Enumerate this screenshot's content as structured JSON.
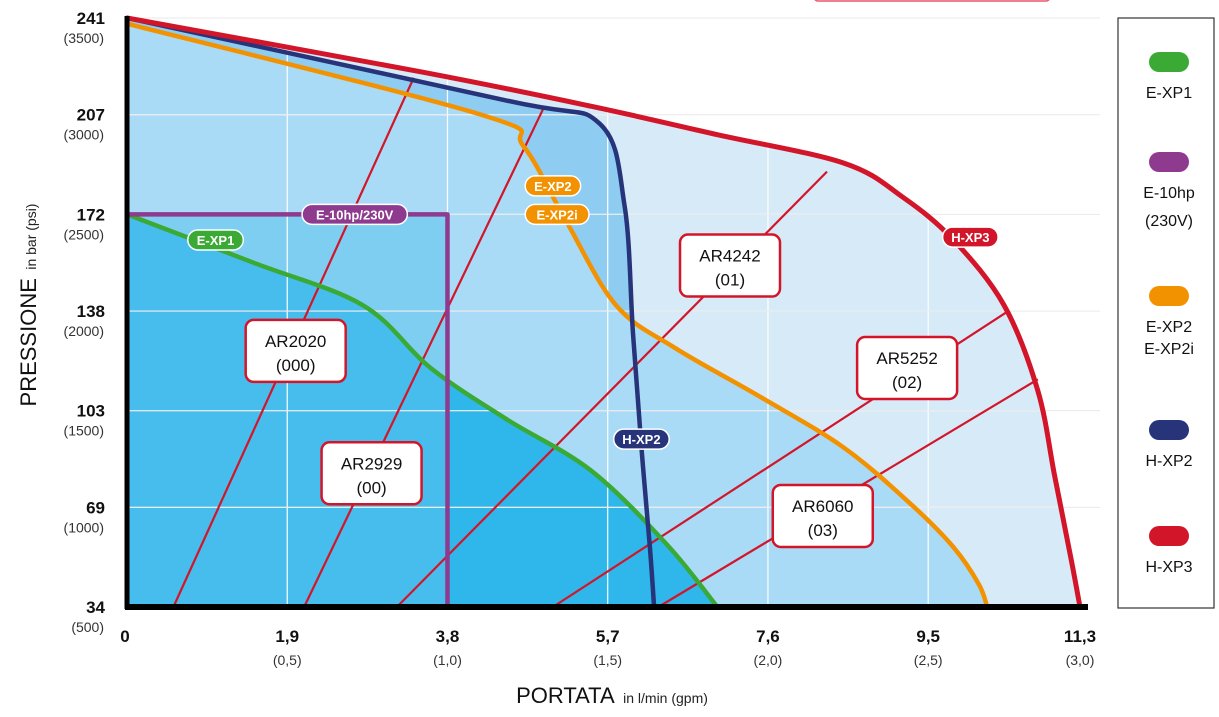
{
  "chart_data": {
    "type": "line",
    "xlabel": "PORTATA",
    "xlabel_unit": "in l/min (gpm)",
    "ylabel": "PRESSIONE",
    "ylabel_unit": "in bar (psi)",
    "xlim": [
      0,
      11.3
    ],
    "ylim": [
      34,
      241
    ],
    "x_ticks": [
      {
        "value": 0,
        "label": "0",
        "sub": ""
      },
      {
        "value": 1.9,
        "label": "1,9",
        "sub": "(0,5)"
      },
      {
        "value": 3.8,
        "label": "3,8",
        "sub": "(1,0)"
      },
      {
        "value": 5.7,
        "label": "5,7",
        "sub": "(1,5)"
      },
      {
        "value": 7.6,
        "label": "7,6",
        "sub": "(2,0)"
      },
      {
        "value": 9.5,
        "label": "9,5",
        "sub": "(2,5)"
      },
      {
        "value": 11.3,
        "label": "11,3",
        "sub": "(3,0)"
      }
    ],
    "y_ticks": [
      {
        "value": 241,
        "label": "241",
        "sub": "(3500)"
      },
      {
        "value": 207,
        "label": "207",
        "sub": "(3000)"
      },
      {
        "value": 172,
        "label": "172",
        "sub": "(2500)"
      },
      {
        "value": 138,
        "label": "138",
        "sub": "(2000)"
      },
      {
        "value": 103,
        "label": "103",
        "sub": "(1500)"
      },
      {
        "value": 69,
        "label": "69",
        "sub": "(1000)"
      },
      {
        "value": 34,
        "label": "34",
        "sub": "(500)"
      }
    ],
    "grid": true,
    "legend_position": "right",
    "series": [
      {
        "name": "H-XP3",
        "color": "#d3152a",
        "x": [
          0,
          3.5,
          5.5,
          7.0,
          8.5,
          9.2,
          9.8,
          10.4,
          10.8,
          11.0,
          11.2,
          11.3
        ],
        "y": [
          241,
          222,
          210,
          200,
          190,
          178,
          163,
          140,
          110,
          80,
          50,
          34
        ]
      },
      {
        "name": "H-XP2",
        "color": "#27347a",
        "x": [
          0,
          4.5,
          5.6,
          5.9,
          6.0,
          6.1,
          6.2,
          6.25
        ],
        "y": [
          241,
          212,
          204,
          175,
          130,
          90,
          55,
          34
        ]
      },
      {
        "name": "E-XP2 / E-XP2i",
        "color": "#f39200",
        "x": [
          0,
          4.2,
          4.7,
          5.2,
          5.8,
          6.5,
          7.5,
          8.5,
          9.3,
          9.8,
          10.1,
          10.2
        ],
        "y": [
          239,
          207,
          196,
          170,
          140,
          125,
          108,
          90,
          70,
          55,
          42,
          34
        ]
      },
      {
        "name": "E-10hp (230V)",
        "color": "#8e3b8f",
        "x": [
          0,
          3.8,
          3.8
        ],
        "y": [
          172,
          172,
          34
        ]
      },
      {
        "name": "E-XP1",
        "color": "#3aaa35",
        "x": [
          0,
          1.5,
          2.8,
          3.6,
          4.5,
          5.5,
          6.4,
          7.0
        ],
        "y": [
          172,
          155,
          140,
          118,
          100,
          82,
          56,
          34
        ]
      }
    ],
    "load_lines": [
      {
        "label": "AR2020",
        "code": "(000)",
        "x": [
          0.55,
          3.4
        ],
        "y": [
          34,
          220
        ]
      },
      {
        "label": "AR2929",
        "code": "(00)",
        "x": [
          2.1,
          4.95
        ],
        "y": [
          34,
          210
        ]
      },
      {
        "label": "AR4242",
        "code": "(01)",
        "x": [
          3.2,
          8.3
        ],
        "y": [
          34,
          187
        ]
      },
      {
        "label": "AR5252",
        "code": "(02)",
        "x": [
          5.05,
          10.45
        ],
        "y": [
          34,
          138
        ]
      },
      {
        "label": "AR6060",
        "code": "(03)",
        "x": [
          6.3,
          10.8
        ],
        "y": [
          34,
          114
        ]
      }
    ],
    "curve_labels": [
      {
        "text": "E-10hp/230V",
        "color": "#8e3b8f",
        "x": 2.7,
        "y": 172
      },
      {
        "text": "E-XP1",
        "color": "#3aaa35",
        "x": 1.05,
        "y": 163
      },
      {
        "text": "E-XP2",
        "color": "#f39200",
        "x": 5.05,
        "y": 182
      },
      {
        "text": "E-XP2i",
        "color": "#f39200",
        "x": 5.1,
        "y": 172
      },
      {
        "text": "H-XP2",
        "color": "#27347a",
        "x": 6.1,
        "y": 93
      },
      {
        "text": "H-XP3",
        "color": "#d3152a",
        "x": 10.0,
        "y": 164
      }
    ],
    "load_boxes": [
      {
        "title": "AR2020",
        "code": "(000)",
        "x": 2.0,
        "y": 124
      },
      {
        "title": "AR2929",
        "code": "(00)",
        "x": 2.9,
        "y": 81
      },
      {
        "title": "AR4242",
        "code": "(01)",
        "x": 7.15,
        "y": 154
      },
      {
        "title": "AR5252",
        "code": "(02)",
        "x": 9.25,
        "y": 118
      },
      {
        "title": "AR6060",
        "code": "(03)",
        "x": 8.25,
        "y": 66
      }
    ],
    "legend": [
      {
        "label": "E-XP1",
        "label2": "",
        "color": "#3aaa35"
      },
      {
        "label": "E-10hp",
        "label2": "(230V)",
        "color": "#8e3b8f"
      },
      {
        "label": "E-XP2",
        "label2": "E-XP2i",
        "color": "#f39200"
      },
      {
        "label": "H-XP2",
        "label2": "",
        "color": "#27347a"
      },
      {
        "label": "H-XP3",
        "label2": "",
        "color": "#d3152a"
      }
    ]
  }
}
